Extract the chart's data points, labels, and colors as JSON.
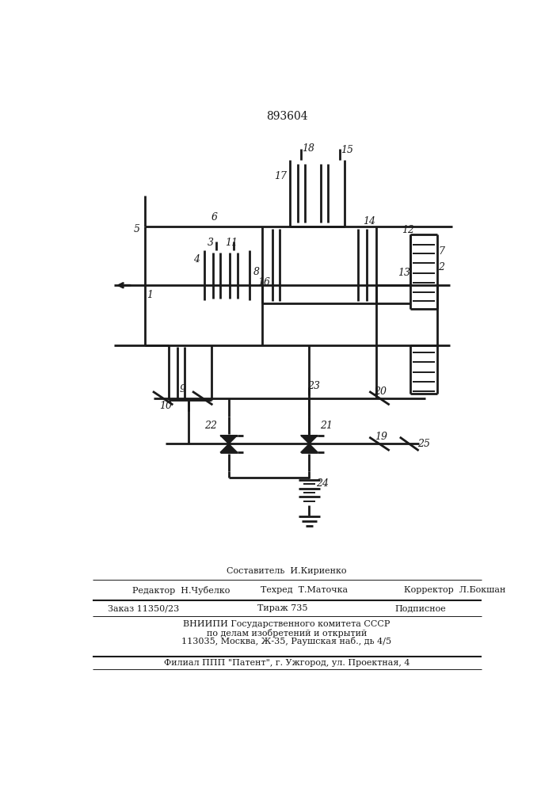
{
  "title": "893604",
  "bg": "#ffffff",
  "lc": "#1a1a1a",
  "lw": 1.4,
  "lw2": 2.0,
  "footer": {
    "comp": "Составитель  И.Кириенко",
    "ed": "Редактор  Н.Чубелко",
    "tech": "Техред  Т.Маточка",
    "corr": "Корректор  Л.Бокшан",
    "order": "Заказ 11350/23",
    "tirazh": "Тираж 735",
    "podp": "Подписное",
    "vniip1": "ВНИИПИ Государственного комитета СССР",
    "vniip2": "по делам изобретений и открытий",
    "addr": "113035, Москва, Ж-35, Раушская наб., дь 4/5",
    "filial": "Филиал ППП \"Патент\", г. Ужгород, ул. Проектная, 4"
  }
}
